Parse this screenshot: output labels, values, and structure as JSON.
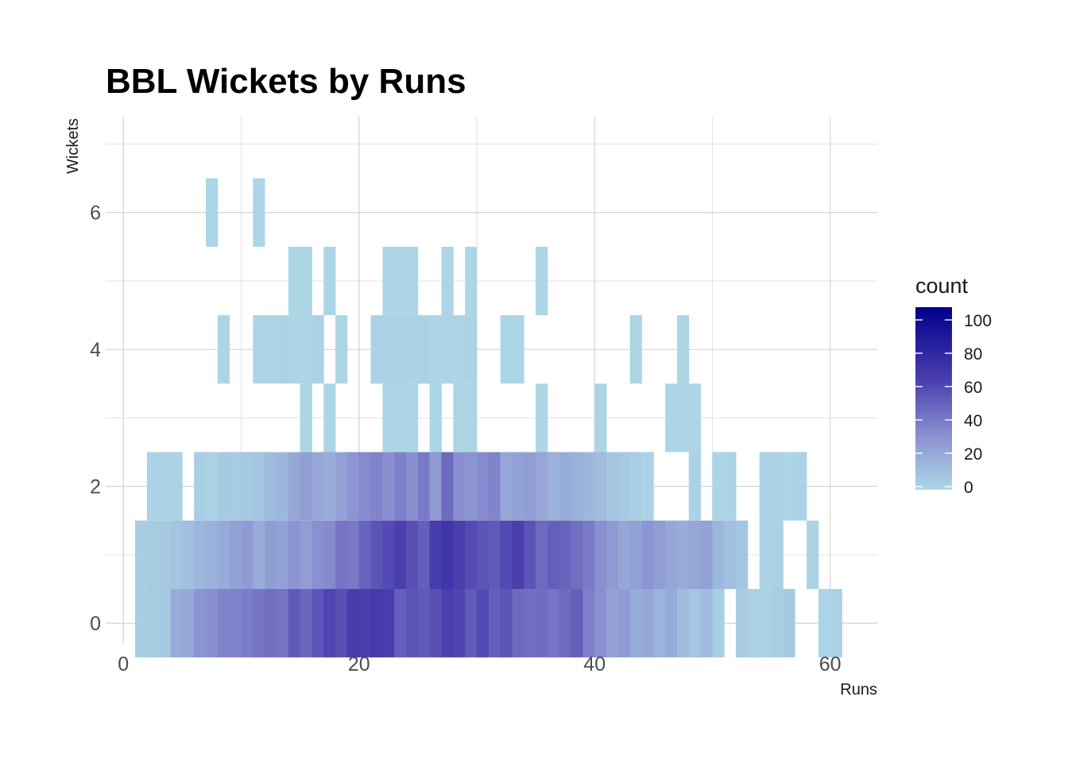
{
  "chart_data": {
    "type": "heatmap",
    "title": "BBL Wickets by Runs",
    "xlabel": "Runs",
    "ylabel": "Wickets",
    "xlim": [
      -1.5,
      64
    ],
    "ylim": [
      -0.3,
      7.4
    ],
    "x_ticks": [
      0,
      20,
      40,
      60
    ],
    "y_ticks": [
      0,
      2,
      4,
      6
    ],
    "bin_width": 2,
    "grid": true,
    "legend": {
      "title": "count",
      "position": "right",
      "ticks": [
        0,
        20,
        40,
        60,
        80,
        100
      ],
      "range": [
        0,
        100
      ],
      "low_color": "#add8e6",
      "high_color": "#00008b"
    },
    "rows": [
      {
        "wickets": 0,
        "x0": 1,
        "counts": [
          4,
          5,
          6,
          18,
          20,
          28,
          30,
          34,
          35,
          37,
          40,
          42,
          40,
          50,
          45,
          52,
          58,
          54,
          62,
          60,
          63,
          61,
          48,
          52,
          50,
          54,
          60,
          58,
          50,
          56,
          48,
          52,
          44,
          42,
          43,
          40,
          44,
          48,
          36,
          30,
          22,
          25,
          18,
          20,
          15,
          18,
          12,
          8,
          12,
          4,
          0,
          5,
          3,
          2,
          4,
          6,
          0,
          0,
          1,
          2
        ]
      },
      {
        "wickets": 1,
        "x0": 1,
        "counts": [
          4,
          5,
          6,
          8,
          10,
          14,
          16,
          18,
          22,
          25,
          18,
          24,
          22,
          28,
          24,
          30,
          32,
          40,
          38,
          46,
          52,
          56,
          60,
          54,
          48,
          62,
          66,
          60,
          56,
          52,
          50,
          56,
          60,
          52,
          44,
          48,
          46,
          42,
          38,
          30,
          26,
          20,
          22,
          28,
          24,
          20,
          18,
          20,
          22,
          14,
          10,
          8,
          0,
          2,
          3,
          0,
          0,
          2,
          0,
          0
        ]
      },
      {
        "wickets": 2,
        "x0": 2,
        "counts": [
          2,
          3,
          2,
          0,
          4,
          3,
          6,
          5,
          6,
          8,
          12,
          14,
          20,
          24,
          20,
          18,
          22,
          28,
          32,
          34,
          30,
          36,
          30,
          38,
          26,
          44,
          30,
          28,
          32,
          34,
          20,
          22,
          24,
          20,
          16,
          18,
          16,
          14,
          12,
          8,
          6,
          4,
          3,
          0,
          0,
          0,
          2,
          0,
          1,
          2,
          0,
          0,
          3,
          2,
          1,
          2
        ]
      },
      {
        "wickets": 3,
        "x0": 3,
        "counts": [
          1,
          0,
          1,
          0,
          1,
          2,
          4,
          2,
          3,
          5,
          0,
          6,
          8,
          12,
          14,
          10,
          18,
          16,
          20,
          22,
          16,
          24,
          20,
          22,
          18,
          14,
          12,
          10,
          6,
          8,
          4,
          10,
          6,
          6,
          5,
          2,
          0,
          2,
          0,
          1,
          0,
          0,
          0,
          1
        ]
      },
      {
        "wickets": 4,
        "x0": 8,
        "counts": [
          1,
          0,
          0,
          1,
          1,
          2,
          1,
          1,
          2,
          0,
          1,
          0,
          0,
          2,
          3,
          3,
          2,
          3,
          1,
          1,
          1,
          2,
          0,
          0,
          1,
          1,
          0,
          0,
          0,
          0,
          0,
          0,
          0,
          0,
          0,
          1,
          0,
          0,
          0,
          1
        ]
      },
      {
        "wickets": 5,
        "x0": 14,
        "counts": [
          1,
          0,
          1,
          0,
          0,
          0,
          0,
          0,
          1,
          1,
          1,
          0,
          1,
          1,
          0,
          0,
          0,
          1,
          1,
          0,
          0,
          0,
          1,
          0,
          0,
          0,
          1,
          0,
          0,
          0,
          0,
          0,
          0,
          0,
          0,
          0,
          0,
          0,
          0,
          0,
          0,
          0,
          0,
          0,
          0
        ]
      },
      {
        "wickets": 6,
        "x0": 7,
        "counts": [
          1,
          0,
          0,
          0,
          1,
          0,
          0,
          0,
          0,
          0,
          0,
          0,
          0,
          0,
          0,
          0,
          0,
          0,
          0,
          0,
          0,
          0,
          0,
          0,
          0,
          0,
          0,
          0,
          0,
          0,
          0,
          0,
          0,
          0,
          0,
          0,
          0,
          0
        ]
      }
    ],
    "sparse_rows": {
      "3": {
        "14": 0,
        "15": 1,
        "16": 0,
        "17": 1,
        "22": 1,
        "23": 1,
        "24": 1,
        "26": 1,
        "28": 1,
        "29": 1,
        "35": 1,
        "40": 1,
        "46": 1,
        "47": 1,
        "48": 1
      },
      "5": {
        "14": 1,
        "15": 1,
        "17": 1,
        "22": 1,
        "23": 1,
        "24": 1,
        "27": 1,
        "29": 1,
        "35": 1
      },
      "6": {
        "7": 1,
        "11": 1
      }
    }
  }
}
